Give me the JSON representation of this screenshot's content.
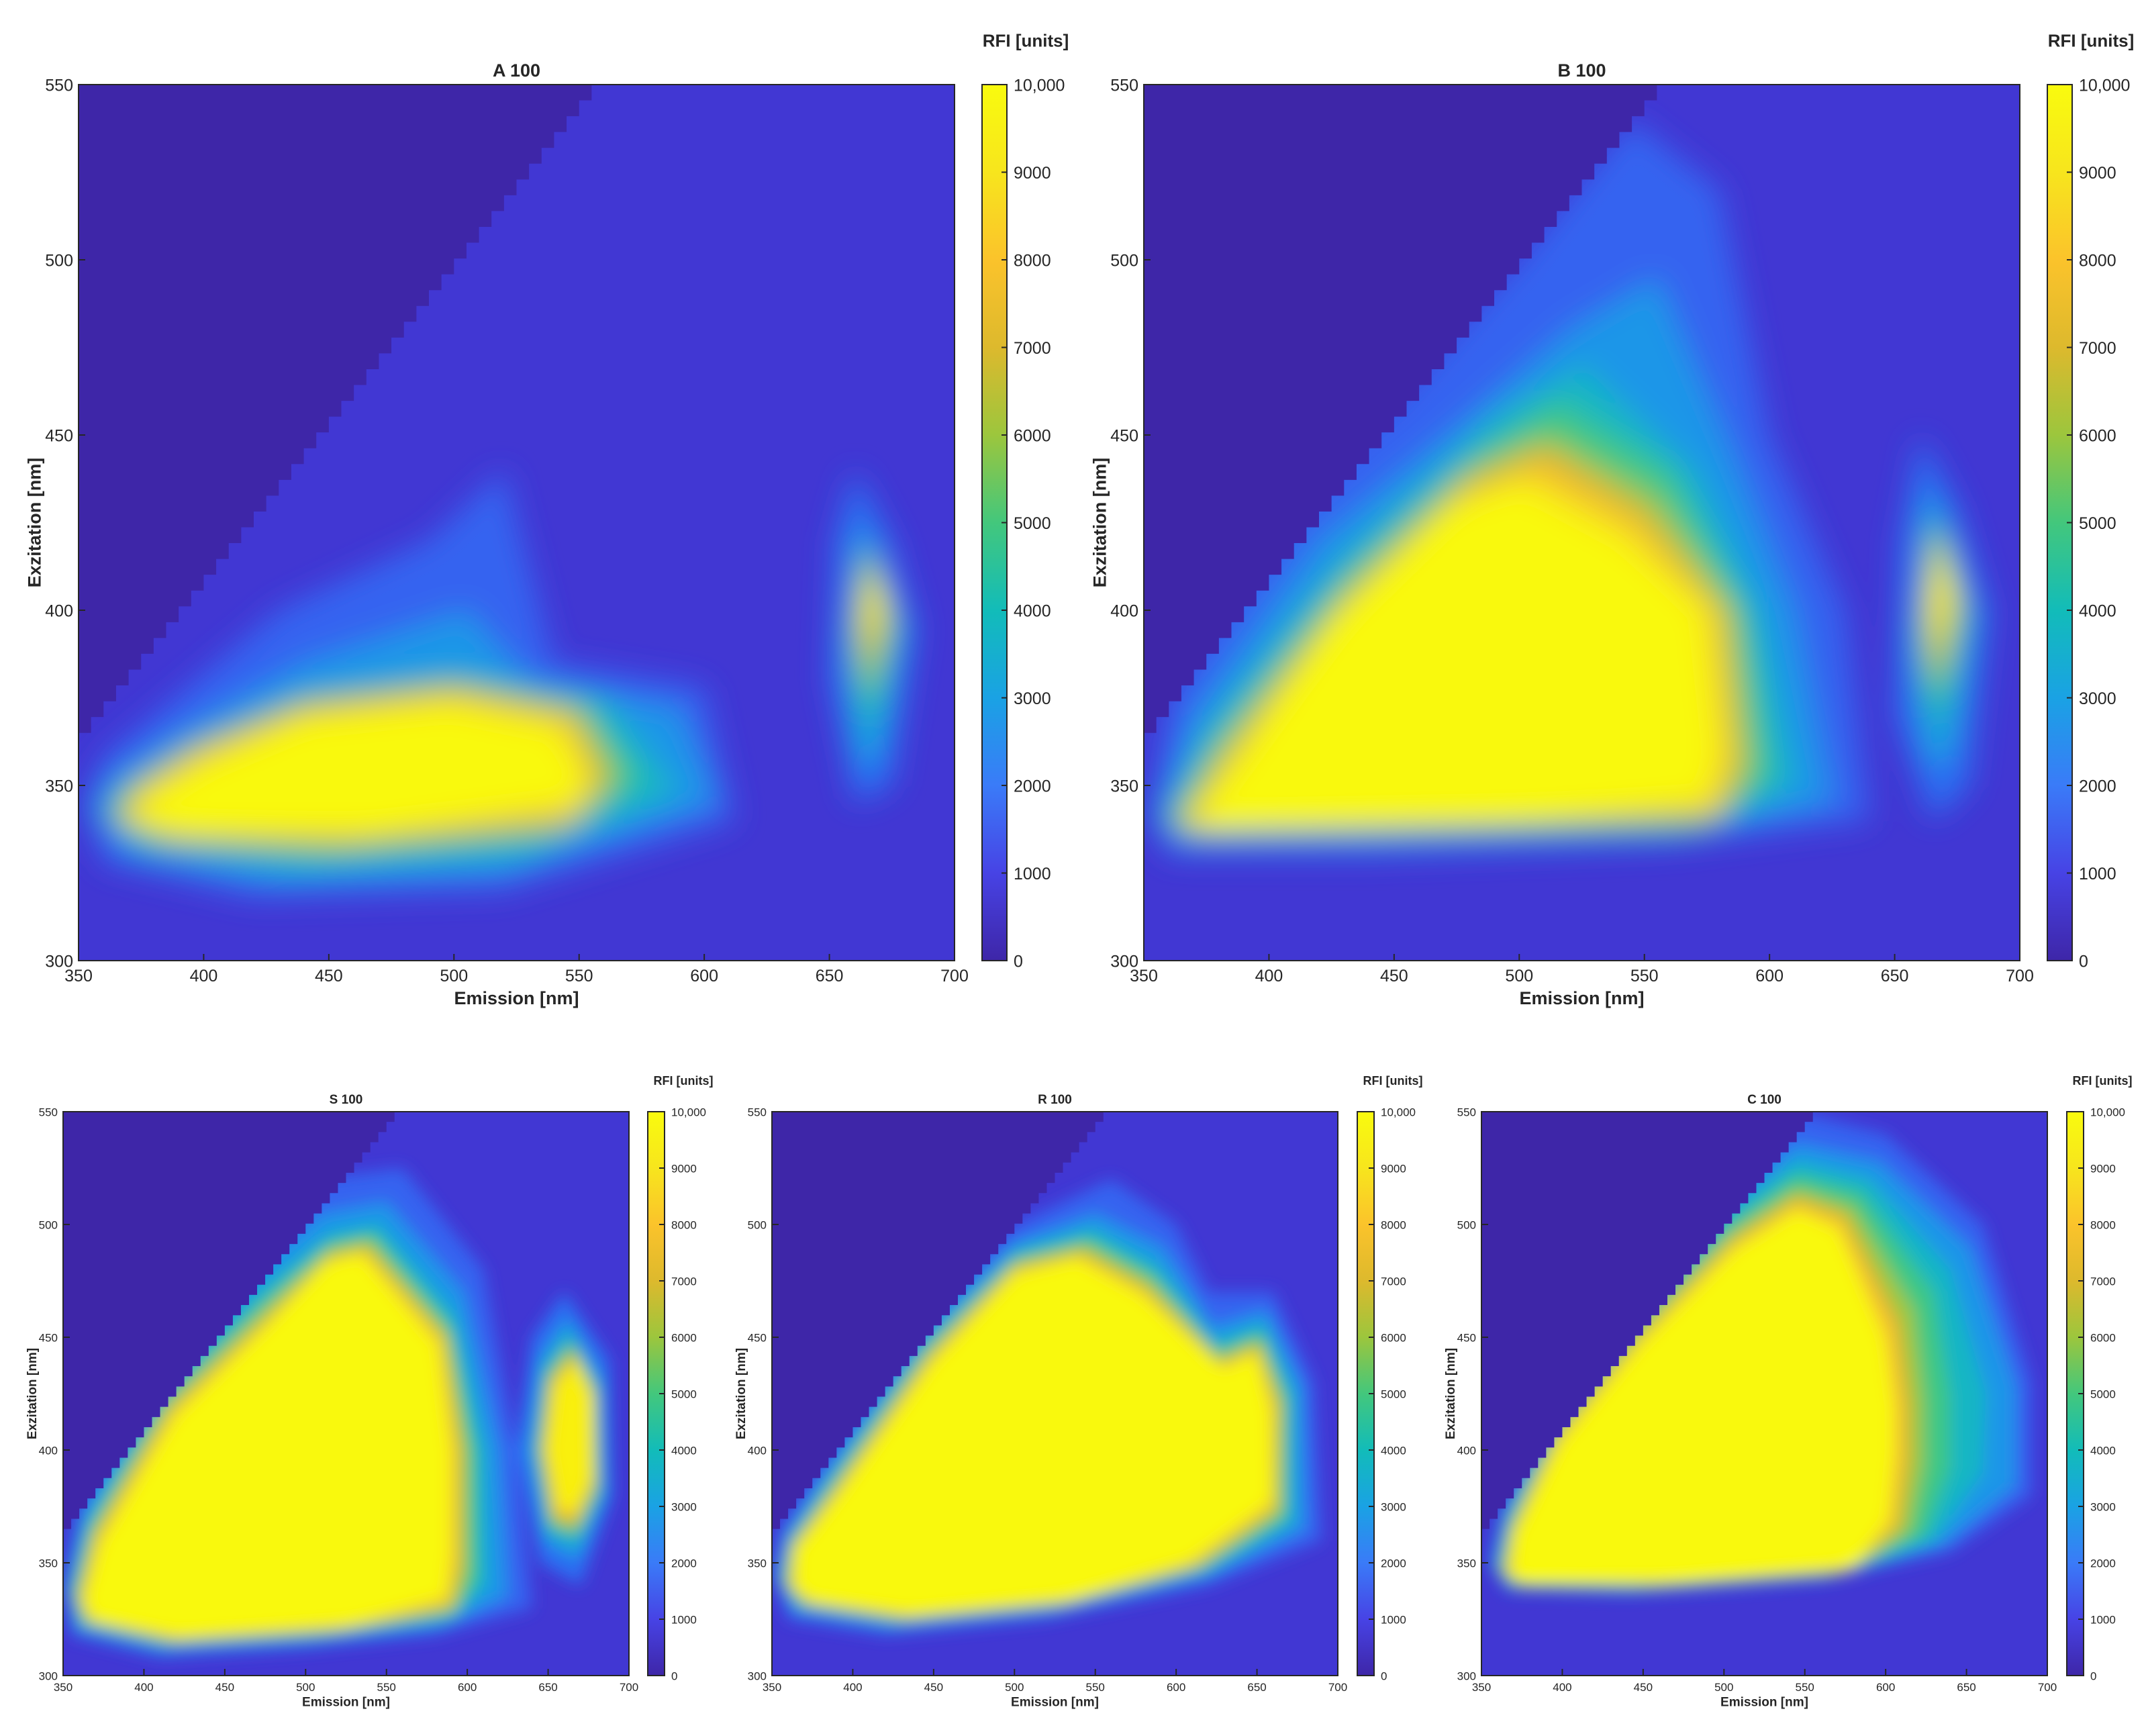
{
  "chart_data": [
    {
      "type": "heatmap",
      "title": "A 100",
      "xlabel": "Emission [nm]",
      "ylabel": "Exzitation [nm]",
      "xlim": [
        350,
        700
      ],
      "ylim": [
        300,
        550
      ],
      "xticks": [
        "350",
        "400",
        "450",
        "500",
        "550",
        "600",
        "650",
        "700"
      ],
      "yticks": [
        "300",
        "350",
        "400",
        "450",
        "500",
        "550"
      ],
      "colorbar": {
        "label": "RFI [units]",
        "range": [
          0,
          10000
        ],
        "ticks": [
          "0",
          "1000",
          "2000",
          "3000",
          "4000",
          "5000",
          "6000",
          "7000",
          "8000",
          "9000",
          "10,000"
        ]
      },
      "peaks": [
        {
          "emission": 470,
          "excitation": 355,
          "intensity": 10000
        },
        {
          "emission": 670,
          "excitation": 408,
          "intensity": 9000
        }
      ]
    },
    {
      "type": "heatmap",
      "title": "B 100",
      "xlabel": "Emission [nm]",
      "ylabel": "Exzitation [nm]",
      "xlim": [
        350,
        700
      ],
      "ylim": [
        300,
        550
      ],
      "xticks": [
        "350",
        "400",
        "450",
        "500",
        "550",
        "600",
        "650",
        "700"
      ],
      "yticks": [
        "300",
        "350",
        "400",
        "450",
        "500",
        "550"
      ],
      "colorbar": {
        "label": "RFI [units]",
        "range": [
          0,
          10000
        ],
        "ticks": [
          "0",
          "1000",
          "2000",
          "3000",
          "4000",
          "5000",
          "6000",
          "7000",
          "8000",
          "9000",
          "10,000"
        ]
      },
      "peaks": [
        {
          "emission": 470,
          "excitation": 385,
          "intensity": 10000
        },
        {
          "emission": 670,
          "excitation": 405,
          "intensity": 9500
        }
      ]
    },
    {
      "type": "heatmap",
      "title": "S 100",
      "xlabel": "Emission [nm]",
      "ylabel": "Exzitation [nm]",
      "xlim": [
        350,
        700
      ],
      "ylim": [
        300,
        550
      ],
      "xticks": [
        "350",
        "400",
        "450",
        "500",
        "550",
        "600",
        "650",
        "700"
      ],
      "yticks": [
        "300",
        "350",
        "400",
        "450",
        "500",
        "550"
      ],
      "colorbar": {
        "label": "RFI [units]",
        "range": [
          0,
          10000
        ],
        "ticks": [
          "0",
          "1000",
          "2000",
          "3000",
          "4000",
          "5000",
          "6000",
          "7000",
          "8000",
          "9000",
          "10,000"
        ]
      },
      "peaks": [
        {
          "emission": 470,
          "excitation": 400,
          "intensity": 10000
        },
        {
          "emission": 665,
          "excitation": 405,
          "intensity": 10000
        }
      ]
    },
    {
      "type": "heatmap",
      "title": "R 100",
      "xlabel": "Emission [nm]",
      "ylabel": "Exzitation [nm]",
      "xlim": [
        350,
        700
      ],
      "ylim": [
        300,
        550
      ],
      "xticks": [
        "350",
        "400",
        "450",
        "500",
        "550",
        "600",
        "650",
        "700"
      ],
      "yticks": [
        "300",
        "350",
        "400",
        "450",
        "500",
        "550"
      ],
      "colorbar": {
        "label": "RFI [units]",
        "range": [
          0,
          10000
        ],
        "ticks": [
          "0",
          "1000",
          "2000",
          "3000",
          "4000",
          "5000",
          "6000",
          "7000",
          "8000",
          "9000",
          "10,000"
        ]
      },
      "peaks": [
        {
          "emission": 490,
          "excitation": 395,
          "intensity": 10000
        },
        {
          "emission": 660,
          "excitation": 410,
          "intensity": 10000
        }
      ]
    },
    {
      "type": "heatmap",
      "title": "C 100",
      "xlabel": "Emission [nm]",
      "ylabel": "Exzitation [nm]",
      "xlim": [
        350,
        700
      ],
      "ylim": [
        300,
        550
      ],
      "xticks": [
        "350",
        "400",
        "450",
        "500",
        "550",
        "600",
        "650",
        "700"
      ],
      "yticks": [
        "300",
        "350",
        "400",
        "450",
        "500",
        "550"
      ],
      "colorbar": {
        "label": "RFI [units]",
        "range": [
          0,
          10000
        ],
        "ticks": [
          "0",
          "1000",
          "2000",
          "3000",
          "4000",
          "5000",
          "6000",
          "7000",
          "8000",
          "9000",
          "10,000"
        ]
      },
      "peaks": [
        {
          "emission": 500,
          "excitation": 410,
          "intensity": 10000
        }
      ]
    }
  ],
  "colors": {
    "background": "#3d26a8",
    "colormap": [
      "#3e26a8",
      "#4743e5",
      "#3a7bf8",
      "#1aa2e4",
      "#12bcb9",
      "#43c77c",
      "#9cc63d",
      "#ddb92d",
      "#fbc32b",
      "#f7e51d",
      "#f9fb0e"
    ]
  }
}
